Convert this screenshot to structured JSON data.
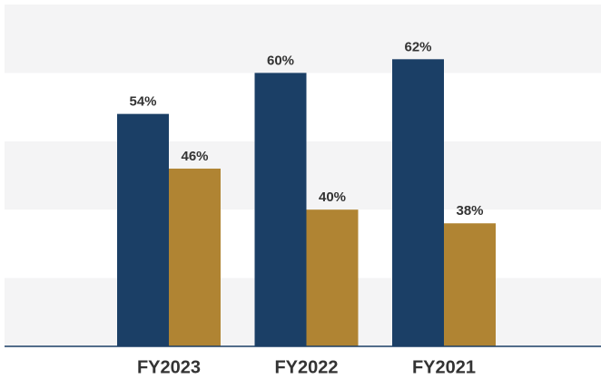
{
  "chart_data": {
    "type": "bar",
    "categories": [
      "FY2023",
      "FY2022",
      "FY2021"
    ],
    "series": [
      {
        "color": "#1b3f66",
        "values": [
          54,
          60,
          62
        ],
        "value_labels": [
          "54%",
          "60%",
          "62%"
        ]
      },
      {
        "color": "#b08433",
        "values": [
          46,
          40,
          38
        ],
        "value_labels": [
          "46%",
          "40%",
          "38%"
        ]
      }
    ],
    "ylim": [
      20,
      70
    ],
    "yticks": [
      20,
      30,
      40,
      50,
      60,
      70
    ],
    "grid": true
  }
}
